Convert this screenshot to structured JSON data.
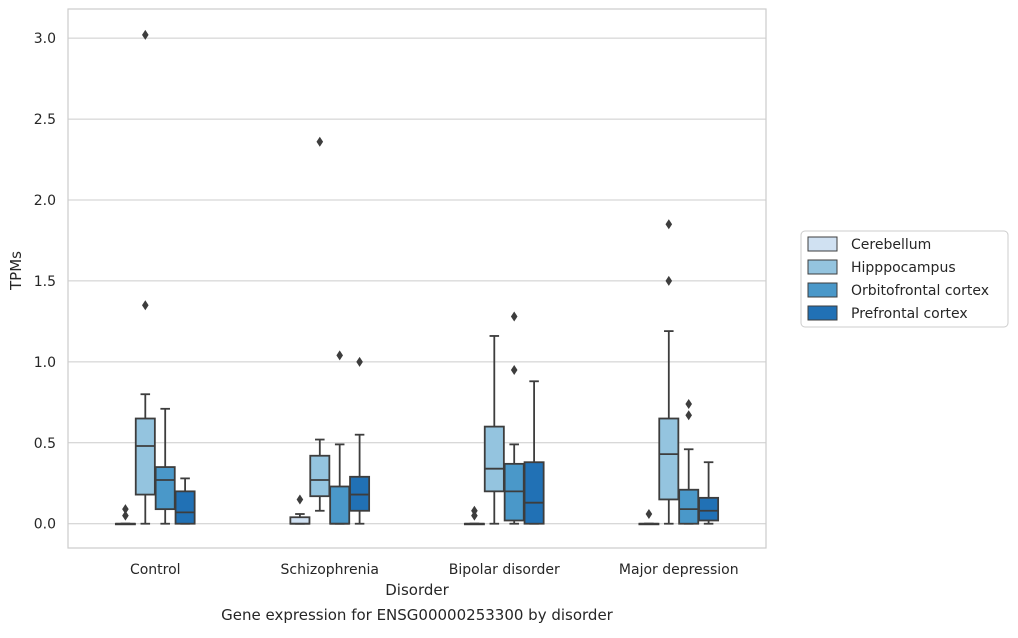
{
  "chart_data": {
    "type": "box",
    "xlabel": "Disorder",
    "ylabel": "TPMs",
    "caption": "Gene expression for ENSG00000253300 by disorder",
    "ylim": [
      -0.15,
      3.18
    ],
    "yticks": [
      0.0,
      0.5,
      1.0,
      1.5,
      2.0,
      2.5,
      3.0
    ],
    "ytick_labels": [
      "0.0",
      "0.5",
      "1.0",
      "1.5",
      "2.0",
      "2.5",
      "3.0"
    ],
    "grid": "horizontal",
    "legend_position": "right",
    "categories": [
      "Control",
      "Schizophrenia",
      "Bipolar disorder",
      "Major depression"
    ],
    "series": [
      {
        "name": "Cerebellum",
        "color": "#d0e1f2",
        "boxes": [
          {
            "whislo": 0.0,
            "q1": 0.0,
            "med": 0.0,
            "q3": 0.0,
            "whishi": 0.0,
            "fliers": [
              0.05,
              0.09
            ]
          },
          {
            "whislo": 0.0,
            "q1": 0.0,
            "med": 0.0,
            "q3": 0.04,
            "whishi": 0.06,
            "fliers": [
              0.15
            ]
          },
          {
            "whislo": 0.0,
            "q1": 0.0,
            "med": 0.0,
            "q3": 0.0,
            "whishi": 0.0,
            "fliers": [
              0.05,
              0.08
            ]
          },
          {
            "whislo": 0.0,
            "q1": 0.0,
            "med": 0.0,
            "q3": 0.0,
            "whishi": 0.0,
            "fliers": [
              0.06
            ]
          }
        ]
      },
      {
        "name": "Hipppocampus",
        "color": "#94c4df",
        "boxes": [
          {
            "whislo": 0.0,
            "q1": 0.18,
            "med": 0.48,
            "q3": 0.65,
            "whishi": 0.8,
            "fliers": [
              1.35,
              3.02
            ]
          },
          {
            "whislo": 0.08,
            "q1": 0.17,
            "med": 0.27,
            "q3": 0.42,
            "whishi": 0.52,
            "fliers": [
              2.36
            ]
          },
          {
            "whislo": 0.0,
            "q1": 0.2,
            "med": 0.34,
            "q3": 0.6,
            "whishi": 1.16,
            "fliers": []
          },
          {
            "whislo": 0.0,
            "q1": 0.15,
            "med": 0.43,
            "q3": 0.65,
            "whishi": 1.19,
            "fliers": [
              1.5,
              1.85
            ]
          }
        ]
      },
      {
        "name": "Orbitofrontal cortex",
        "color": "#4a98c9",
        "boxes": [
          {
            "whislo": 0.0,
            "q1": 0.09,
            "med": 0.27,
            "q3": 0.35,
            "whishi": 0.71,
            "fliers": []
          },
          {
            "whislo": 0.0,
            "q1": 0.0,
            "med": 0.0,
            "q3": 0.23,
            "whishi": 0.49,
            "fliers": [
              1.04
            ]
          },
          {
            "whislo": 0.0,
            "q1": 0.02,
            "med": 0.2,
            "q3": 0.37,
            "whishi": 0.49,
            "fliers": [
              0.95,
              1.28
            ]
          },
          {
            "whislo": 0.0,
            "q1": 0.0,
            "med": 0.09,
            "q3": 0.21,
            "whishi": 0.46,
            "fliers": [
              0.67,
              0.74
            ]
          }
        ]
      },
      {
        "name": "Prefrontal cortex",
        "color": "#2171b5",
        "boxes": [
          {
            "whislo": 0.0,
            "q1": 0.0,
            "med": 0.07,
            "q3": 0.2,
            "whishi": 0.28,
            "fliers": []
          },
          {
            "whislo": 0.0,
            "q1": 0.08,
            "med": 0.18,
            "q3": 0.29,
            "whishi": 0.55,
            "fliers": [
              1.0
            ]
          },
          {
            "whislo": 0.0,
            "q1": 0.0,
            "med": 0.13,
            "q3": 0.38,
            "whishi": 0.88,
            "fliers": []
          },
          {
            "whislo": 0.0,
            "q1": 0.02,
            "med": 0.08,
            "q3": 0.16,
            "whishi": 0.38,
            "fliers": []
          }
        ]
      }
    ]
  }
}
